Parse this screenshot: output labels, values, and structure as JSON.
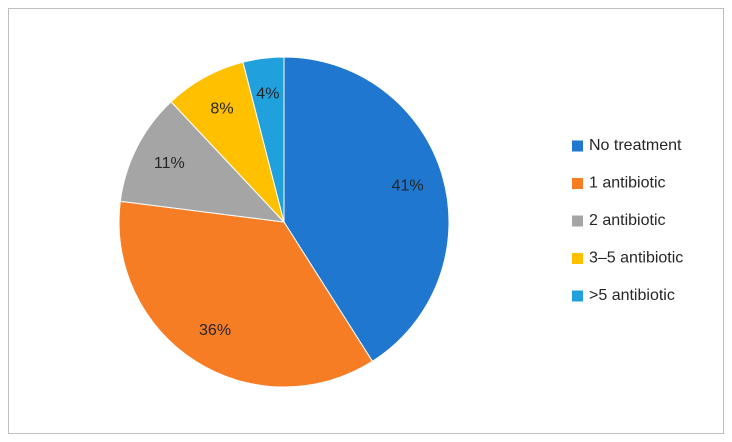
{
  "chart_data": {
    "type": "pie",
    "categories": [
      "No treatment",
      "1 antibiotic",
      "2 antibiotic",
      "3–5 antibiotic",
      ">5 antibiotic"
    ],
    "values": [
      41,
      36,
      11,
      8,
      4
    ],
    "value_labels": [
      "41%",
      "36%",
      "11%",
      "8%",
      "4%"
    ],
    "colors": [
      "#1f77cf",
      "#f77d24",
      "#a5a5a5",
      "#ffc000",
      "#20a1dd"
    ],
    "legend": "right"
  }
}
